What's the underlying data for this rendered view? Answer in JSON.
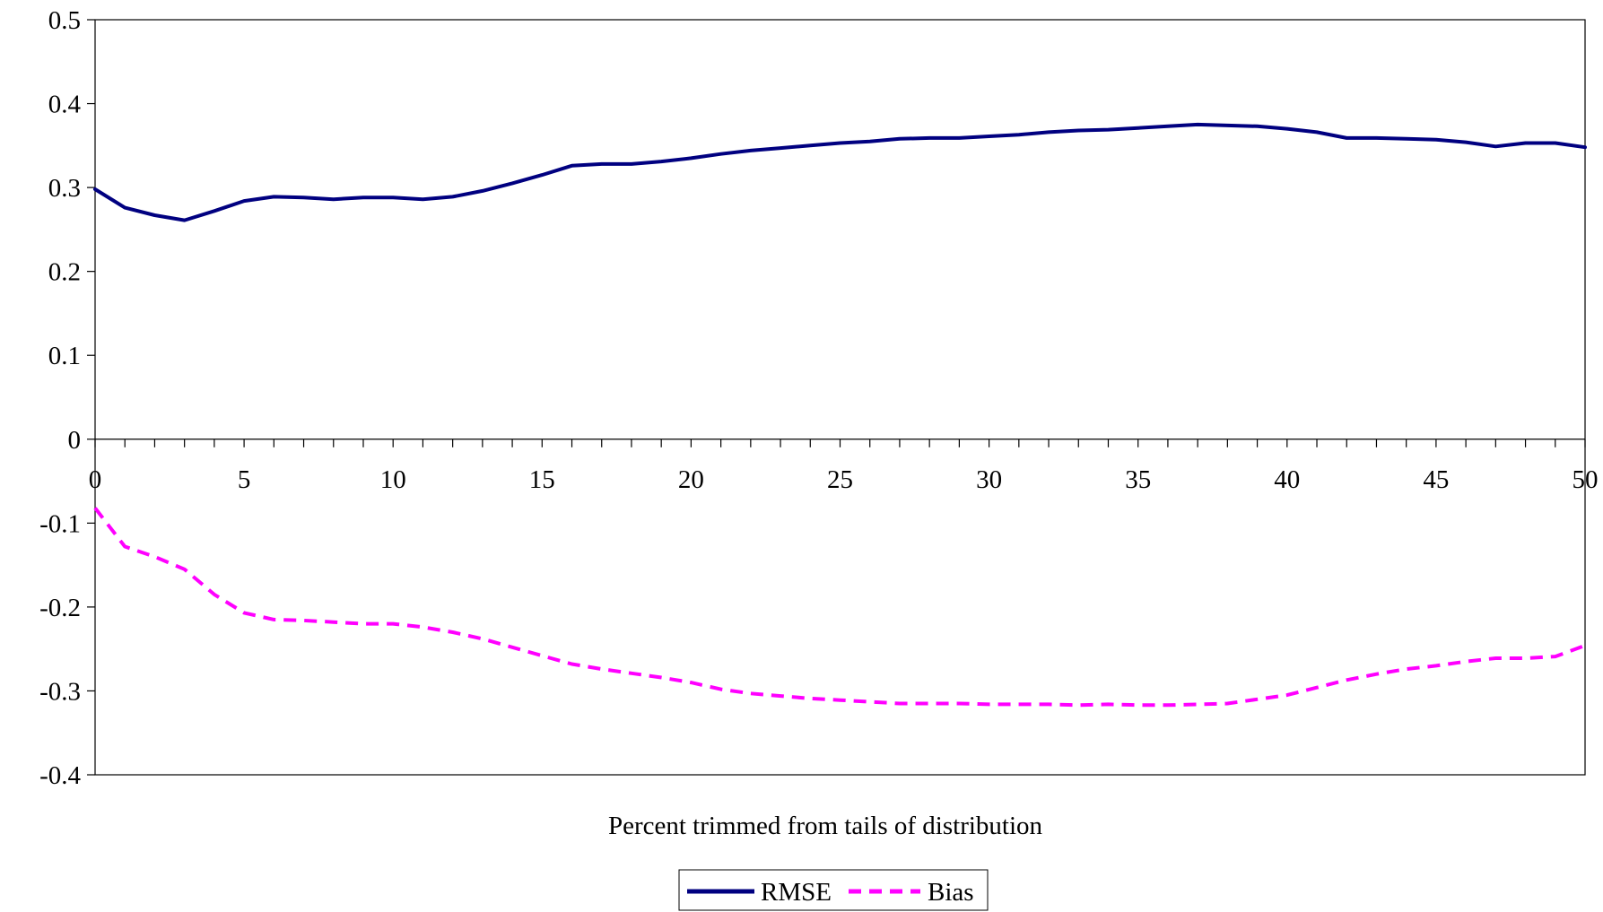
{
  "chart_data": {
    "type": "line",
    "title": "",
    "xlabel": "Percent trimmed from tails of distribution",
    "ylabel": "",
    "xlim": [
      0,
      50
    ],
    "ylim": [
      -0.4,
      0.5
    ],
    "yticks": [
      "0.5",
      "0.4",
      "0.3",
      "0.2",
      "0.1",
      "0",
      "-0.1",
      "-0.2",
      "-0.3",
      "-0.4"
    ],
    "ytick_values": [
      0.5,
      0.4,
      0.3,
      0.2,
      0.1,
      0,
      -0.1,
      -0.2,
      -0.3,
      -0.4
    ],
    "xticks": [
      "0",
      "5",
      "10",
      "15",
      "20",
      "25",
      "30",
      "35",
      "40",
      "45",
      "50"
    ],
    "xtick_values": [
      0,
      5,
      10,
      15,
      20,
      25,
      30,
      35,
      40,
      45,
      50
    ],
    "x": [
      0,
      1,
      2,
      3,
      4,
      5,
      6,
      7,
      8,
      9,
      10,
      11,
      12,
      13,
      14,
      15,
      16,
      17,
      18,
      19,
      20,
      21,
      22,
      23,
      24,
      25,
      26,
      27,
      28,
      29,
      30,
      31,
      32,
      33,
      34,
      35,
      36,
      37,
      38,
      39,
      40,
      41,
      42,
      43,
      44,
      45,
      46,
      47,
      48,
      49,
      50
    ],
    "grid": false,
    "legend_position": "bottom-center",
    "series": [
      {
        "name": "RMSE",
        "color": "#000080",
        "style": "solid",
        "values": [
          0.298,
          0.276,
          0.267,
          0.261,
          0.272,
          0.284,
          0.289,
          0.288,
          0.286,
          0.288,
          0.288,
          0.286,
          0.289,
          0.296,
          0.305,
          0.315,
          0.326,
          0.328,
          0.328,
          0.331,
          0.335,
          0.34,
          0.344,
          0.347,
          0.35,
          0.353,
          0.355,
          0.358,
          0.359,
          0.359,
          0.361,
          0.363,
          0.366,
          0.368,
          0.369,
          0.371,
          0.373,
          0.375,
          0.374,
          0.373,
          0.37,
          0.366,
          0.359,
          0.359,
          0.358,
          0.357,
          0.354,
          0.349,
          0.353,
          0.353,
          0.348
        ]
      },
      {
        "name": "Bias",
        "color": "#ff00ff",
        "style": "dashed",
        "values": [
          -0.082,
          -0.128,
          -0.14,
          -0.155,
          -0.185,
          -0.207,
          -0.215,
          -0.216,
          -0.218,
          -0.22,
          -0.22,
          -0.224,
          -0.23,
          -0.238,
          -0.248,
          -0.258,
          -0.268,
          -0.274,
          -0.279,
          -0.284,
          -0.29,
          -0.298,
          -0.303,
          -0.306,
          -0.309,
          -0.311,
          -0.313,
          -0.315,
          -0.315,
          -0.315,
          -0.316,
          -0.316,
          -0.316,
          -0.317,
          -0.316,
          -0.317,
          -0.317,
          -0.316,
          -0.315,
          -0.31,
          -0.305,
          -0.296,
          -0.287,
          -0.28,
          -0.274,
          -0.27,
          -0.265,
          -0.261,
          -0.261,
          -0.259,
          -0.246
        ]
      }
    ]
  }
}
